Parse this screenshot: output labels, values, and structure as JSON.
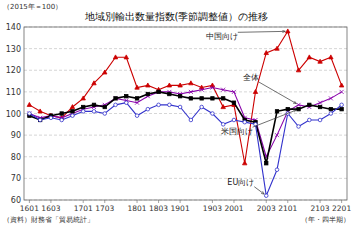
{
  "chart_data": {
    "type": "line",
    "title": "地域別輸出数量指数(季節調整値）の推移",
    "subtitle": "（2015年＝100）",
    "annotations": [
      "（資料）財務省「貿易統計」",
      "（年・四半期）"
    ],
    "categories": [
      "1601",
      null,
      "1603",
      null,
      null,
      "1701",
      null,
      "1703",
      null,
      null,
      "1801",
      null,
      "1803",
      null,
      "1901",
      null,
      null,
      "1903",
      null,
      "2001",
      null,
      null,
      "2003",
      null,
      "2101",
      null,
      null,
      "2103",
      null,
      "2201"
    ],
    "ylim": [
      60,
      140
    ],
    "yticks": [
      60,
      70,
      80,
      90,
      100,
      110,
      120,
      130,
      140
    ],
    "grid": true,
    "series": [
      {
        "name": "中国向け",
        "color": "#cc0000",
        "marker": "triangle",
        "values": [
          104,
          101,
          99,
          98,
          103,
          107,
          114,
          119,
          126,
          126,
          112,
          113,
          111,
          113,
          113,
          114,
          112,
          113,
          103,
          104,
          77,
          110,
          128,
          130,
          138,
          120,
          126,
          124,
          126,
          113
        ]
      },
      {
        "name": "全体",
        "color": "#8800aa",
        "marker": "x",
        "values": [
          100,
          98,
          99,
          98,
          100,
          102,
          103,
          104,
          107,
          106,
          105,
          108,
          110,
          110,
          109,
          110,
          111,
          112,
          111,
          110,
          98,
          97,
          80,
          90,
          101,
          104,
          103,
          105,
          107,
          110
        ]
      },
      {
        "name": "米国向け",
        "color": "#000000",
        "marker": "square",
        "values": [
          99,
          97,
          99,
          100,
          101,
          103,
          104,
          103,
          107,
          108,
          107,
          109,
          110,
          109,
          108,
          107,
          107,
          107,
          107,
          105,
          97,
          96,
          77,
          101,
          102,
          102,
          104,
          103,
          102,
          102
        ]
      },
      {
        "name": "EU向け",
        "color": "#3333cc",
        "marker": "circle",
        "values": [
          100,
          97,
          98,
          97,
          99,
          101,
          101,
          100,
          104,
          105,
          99,
          102,
          104,
          104,
          103,
          97,
          103,
          100,
          95,
          97,
          96,
          95,
          62,
          74,
          100,
          94,
          97,
          97,
          100,
          104
        ]
      }
    ]
  }
}
